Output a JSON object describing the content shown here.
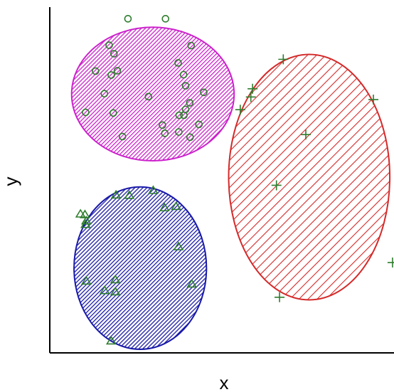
{
  "chart_data": {
    "type": "scatter",
    "title": "",
    "xlabel": "x",
    "ylabel": "y",
    "xlim": [
      0,
      10
    ],
    "ylim": [
      0,
      10
    ],
    "grid": false,
    "legend": "none",
    "colors": {
      "axis": "#000000",
      "marker": "#2e7d2e",
      "cluster_circle": "#cc22cc",
      "cluster_triangle": "#1a1aaa",
      "cluster_plus": "#d42a2a"
    },
    "clusters": [
      {
        "marker": "circle",
        "fill_style": "dense-hatch",
        "color": "#cc22cc",
        "ellipse": {
          "cx": 3.02,
          "cy": 7.91,
          "rx": 2.38,
          "ry": 2.04
        },
        "points": [
          {
            "x": 1.34,
            "y": 8.61
          },
          {
            "x": 1.74,
            "y": 9.4
          },
          {
            "x": 1.88,
            "y": 9.14
          },
          {
            "x": 1.98,
            "y": 8.62
          },
          {
            "x": 1.8,
            "y": 8.49
          },
          {
            "x": 1.6,
            "y": 7.92
          },
          {
            "x": 1.86,
            "y": 7.33
          },
          {
            "x": 1.05,
            "y": 7.35
          },
          {
            "x": 2.13,
            "y": 6.61
          },
          {
            "x": 2.89,
            "y": 7.83
          },
          {
            "x": 3.3,
            "y": 6.96
          },
          {
            "x": 3.37,
            "y": 6.71
          },
          {
            "x": 3.76,
            "y": 8.86
          },
          {
            "x": 3.92,
            "y": 8.5
          },
          {
            "x": 3.98,
            "y": 8.16
          },
          {
            "x": 4.1,
            "y": 7.64
          },
          {
            "x": 3.98,
            "y": 7.44
          },
          {
            "x": 3.93,
            "y": 7.26
          },
          {
            "x": 3.79,
            "y": 7.26
          },
          {
            "x": 3.78,
            "y": 6.75
          },
          {
            "x": 4.11,
            "y": 6.59
          },
          {
            "x": 4.37,
            "y": 6.98
          },
          {
            "x": 4.51,
            "y": 7.96
          },
          {
            "x": 4.14,
            "y": 9.39
          },
          {
            "x": 2.29,
            "y": 10.21
          },
          {
            "x": 3.39,
            "y": 10.21
          }
        ]
      },
      {
        "marker": "triangle",
        "fill_style": "dense-hatch",
        "color": "#1a1aaa",
        "ellipse": {
          "cx": 2.65,
          "cy": 2.59,
          "rx": 1.94,
          "ry": 2.48
        },
        "points": [
          {
            "x": 1.94,
            "y": 4.83
          },
          {
            "x": 2.33,
            "y": 4.82
          },
          {
            "x": 3.03,
            "y": 4.97
          },
          {
            "x": 3.36,
            "y": 4.44
          },
          {
            "x": 3.7,
            "y": 4.48
          },
          {
            "x": 0.9,
            "y": 4.25
          },
          {
            "x": 1.03,
            "y": 4.23
          },
          {
            "x": 1.07,
            "y": 4.04
          },
          {
            "x": 1.05,
            "y": 3.93
          },
          {
            "x": 3.77,
            "y": 3.25
          },
          {
            "x": 1.07,
            "y": 2.2
          },
          {
            "x": 1.92,
            "y": 2.24
          },
          {
            "x": 1.61,
            "y": 1.91
          },
          {
            "x": 1.92,
            "y": 1.87
          },
          {
            "x": 4.16,
            "y": 2.11
          },
          {
            "x": 1.8,
            "y": 0.37
          }
        ]
      },
      {
        "marker": "plus",
        "fill_style": "sparse-hatch",
        "color": "#d42a2a",
        "ellipse": {
          "cx": 7.6,
          "cy": 5.37,
          "rx": 2.36,
          "ry": 3.75
        },
        "points": [
          {
            "x": 6.84,
            "y": 8.97
          },
          {
            "x": 5.94,
            "y": 8.07
          },
          {
            "x": 5.89,
            "y": 7.82
          },
          {
            "x": 5.58,
            "y": 7.43
          },
          {
            "x": 9.48,
            "y": 7.74
          },
          {
            "x": 7.5,
            "y": 6.67
          },
          {
            "x": 6.64,
            "y": 5.12
          },
          {
            "x": 10.04,
            "y": 2.76
          },
          {
            "x": 6.73,
            "y": 1.7
          }
        ]
      }
    ]
  }
}
